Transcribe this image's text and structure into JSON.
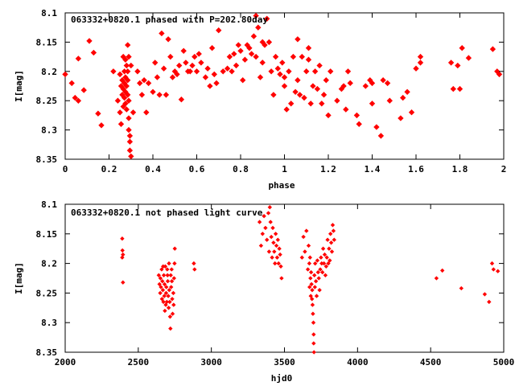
{
  "chart_data": [
    {
      "type": "scatter",
      "title": "063332+0820.1 phased with P=202.80day",
      "xlabel": "phase",
      "ylabel": "I[mag]",
      "xlim": [
        0,
        2
      ],
      "ylim": [
        8.35,
        8.1
      ],
      "y_inverted": true,
      "grid": false,
      "xticks": [
        "0",
        "0.2",
        "0.4",
        "0.6",
        "0.8",
        "1",
        "1.2",
        "1.4",
        "1.6",
        "1.8",
        "2"
      ],
      "yticks": [
        "8.1",
        "8.15",
        "8.2",
        "8.25",
        "8.3",
        "8.35"
      ],
      "color": "#ff0000",
      "points": [
        [
          0.0,
          8.205
        ],
        [
          0.03,
          8.22
        ],
        [
          0.045,
          8.245
        ],
        [
          0.06,
          8.25
        ],
        [
          0.06,
          8.178
        ],
        [
          0.085,
          8.232
        ],
        [
          0.11,
          8.148
        ],
        [
          0.13,
          8.168
        ],
        [
          0.15,
          8.272
        ],
        [
          0.165,
          8.292
        ],
        [
          0.22,
          8.2
        ],
        [
          0.24,
          8.25
        ],
        [
          0.25,
          8.205
        ],
        [
          0.25,
          8.27
        ],
        [
          0.255,
          8.225
        ],
        [
          0.255,
          8.29
        ],
        [
          0.26,
          8.215
        ],
        [
          0.26,
          8.24
        ],
        [
          0.265,
          8.175
        ],
        [
          0.265,
          8.23
        ],
        [
          0.265,
          8.26
        ],
        [
          0.27,
          8.2
        ],
        [
          0.27,
          8.22
        ],
        [
          0.27,
          8.245
        ],
        [
          0.275,
          8.18
        ],
        [
          0.275,
          8.21
        ],
        [
          0.275,
          8.235
        ],
        [
          0.275,
          8.255
        ],
        [
          0.28,
          8.19
        ],
        [
          0.28,
          8.225
        ],
        [
          0.28,
          8.265
        ],
        [
          0.285,
          8.2
        ],
        [
          0.285,
          8.215
        ],
        [
          0.285,
          8.24
        ],
        [
          0.285,
          8.155
        ],
        [
          0.29,
          8.175
        ],
        [
          0.29,
          8.25
        ],
        [
          0.29,
          8.28
        ],
        [
          0.29,
          8.3
        ],
        [
          0.295,
          8.31
        ],
        [
          0.295,
          8.32
        ],
        [
          0.295,
          8.335
        ],
        [
          0.3,
          8.345
        ],
        [
          0.3,
          8.19
        ],
        [
          0.31,
          8.27
        ],
        [
          0.33,
          8.2
        ],
        [
          0.34,
          8.22
        ],
        [
          0.35,
          8.24
        ],
        [
          0.36,
          8.215
        ],
        [
          0.37,
          8.27
        ],
        [
          0.38,
          8.22
        ],
        [
          0.4,
          8.235
        ],
        [
          0.41,
          8.185
        ],
        [
          0.42,
          8.21
        ],
        [
          0.43,
          8.24
        ],
        [
          0.44,
          8.135
        ],
        [
          0.45,
          8.195
        ],
        [
          0.46,
          8.24
        ],
        [
          0.47,
          8.145
        ],
        [
          0.48,
          8.175
        ],
        [
          0.49,
          8.21
        ],
        [
          0.5,
          8.2
        ],
        [
          0.51,
          8.205
        ],
        [
          0.52,
          8.19
        ],
        [
          0.53,
          8.248
        ],
        [
          0.54,
          8.165
        ],
        [
          0.55,
          8.185
        ],
        [
          0.56,
          8.2
        ],
        [
          0.57,
          8.2
        ],
        [
          0.58,
          8.19
        ],
        [
          0.59,
          8.175
        ],
        [
          0.6,
          8.2
        ],
        [
          0.61,
          8.17
        ],
        [
          0.62,
          8.185
        ],
        [
          0.64,
          8.21
        ],
        [
          0.65,
          8.195
        ],
        [
          0.66,
          8.225
        ],
        [
          0.67,
          8.16
        ],
        [
          0.68,
          8.205
        ],
        [
          0.69,
          8.22
        ],
        [
          0.7,
          8.13
        ],
        [
          0.72,
          8.2
        ],
        [
          0.74,
          8.195
        ],
        [
          0.75,
          8.175
        ],
        [
          0.76,
          8.2
        ],
        [
          0.77,
          8.17
        ],
        [
          0.78,
          8.19
        ],
        [
          0.79,
          8.155
        ],
        [
          0.8,
          8.165
        ],
        [
          0.81,
          8.215
        ],
        [
          0.82,
          8.18
        ],
        [
          0.83,
          8.155
        ],
        [
          0.84,
          8.16
        ],
        [
          0.85,
          8.17
        ],
        [
          0.86,
          8.14
        ],
        [
          0.87,
          8.175
        ],
        [
          0.87,
          8.105
        ],
        [
          0.88,
          8.125
        ],
        [
          0.89,
          8.21
        ],
        [
          0.9,
          8.15
        ],
        [
          0.9,
          8.185
        ],
        [
          0.91,
          8.155
        ],
        [
          0.92,
          8.11
        ],
        [
          0.93,
          8.15
        ],
        [
          0.94,
          8.2
        ],
        [
          0.95,
          8.24
        ],
        [
          0.96,
          8.175
        ],
        [
          0.97,
          8.195
        ],
        [
          0.98,
          8.205
        ],
        [
          0.99,
          8.185
        ],
        [
          1.0,
          8.21
        ],
        [
          1.0,
          8.225
        ],
        [
          1.01,
          8.265
        ],
        [
          1.02,
          8.2
        ],
        [
          1.03,
          8.255
        ],
        [
          1.04,
          8.175
        ],
        [
          1.05,
          8.235
        ],
        [
          1.06,
          8.145
        ],
        [
          1.06,
          8.215
        ],
        [
          1.07,
          8.24
        ],
        [
          1.08,
          8.175
        ],
        [
          1.09,
          8.245
        ],
        [
          1.1,
          8.2
        ],
        [
          1.11,
          8.18
        ],
        [
          1.11,
          8.16
        ],
        [
          1.12,
          8.255
        ],
        [
          1.13,
          8.225
        ],
        [
          1.14,
          8.2
        ],
        [
          1.15,
          8.23
        ],
        [
          1.16,
          8.19
        ],
        [
          1.17,
          8.255
        ],
        [
          1.18,
          8.24
        ],
        [
          1.19,
          8.215
        ],
        [
          1.2,
          8.275
        ],
        [
          1.21,
          8.2
        ],
        [
          1.24,
          8.25
        ],
        [
          1.26,
          8.23
        ],
        [
          1.27,
          8.225
        ],
        [
          1.28,
          8.265
        ],
        [
          1.29,
          8.2
        ],
        [
          1.3,
          8.22
        ],
        [
          1.33,
          8.275
        ],
        [
          1.34,
          8.29
        ],
        [
          1.37,
          8.225
        ],
        [
          1.39,
          8.215
        ],
        [
          1.4,
          8.22
        ],
        [
          1.4,
          8.255
        ],
        [
          1.42,
          8.295
        ],
        [
          1.44,
          8.31
        ],
        [
          1.45,
          8.215
        ],
        [
          1.47,
          8.22
        ],
        [
          1.48,
          8.25
        ],
        [
          1.53,
          8.28
        ],
        [
          1.54,
          8.245
        ],
        [
          1.56,
          8.235
        ],
        [
          1.58,
          8.27
        ],
        [
          1.6,
          8.195
        ],
        [
          1.62,
          8.175
        ],
        [
          1.62,
          8.185
        ],
        [
          1.76,
          8.185
        ],
        [
          1.77,
          8.23
        ],
        [
          1.79,
          8.19
        ],
        [
          1.8,
          8.23
        ],
        [
          1.81,
          8.16
        ],
        [
          1.84,
          8.177
        ],
        [
          1.95,
          8.162
        ],
        [
          1.97,
          8.2
        ],
        [
          1.98,
          8.205
        ]
      ]
    },
    {
      "type": "scatter",
      "title": "063332+0820.1 not phased light curve",
      "xlabel": "hjd0",
      "ylabel": "I[mag]",
      "xlim": [
        2000,
        5000
      ],
      "ylim": [
        8.35,
        8.1
      ],
      "y_inverted": true,
      "grid": false,
      "xticks": [
        "2000",
        "2500",
        "3000",
        "3500",
        "4000",
        "4500",
        "5000"
      ],
      "yticks": [
        "8.1",
        "8.15",
        "8.2",
        "8.25",
        "8.3",
        "8.35"
      ],
      "color": "#ff0000",
      "points": [
        [
          2390,
          8.158
        ],
        [
          2390,
          8.19
        ],
        [
          2392,
          8.178
        ],
        [
          2395,
          8.232
        ],
        [
          2395,
          8.185
        ],
        [
          2640,
          8.22
        ],
        [
          2645,
          8.235
        ],
        [
          2650,
          8.25
        ],
        [
          2652,
          8.225
        ],
        [
          2655,
          8.24
        ],
        [
          2660,
          8.21
        ],
        [
          2662,
          8.26
        ],
        [
          2665,
          8.23
        ],
        [
          2668,
          8.245
        ],
        [
          2670,
          8.205
        ],
        [
          2672,
          8.265
        ],
        [
          2675,
          8.22
        ],
        [
          2678,
          8.255
        ],
        [
          2680,
          8.235
        ],
        [
          2682,
          8.28
        ],
        [
          2685,
          8.205
        ],
        [
          2688,
          8.27
        ],
        [
          2690,
          8.25
        ],
        [
          2692,
          8.24
        ],
        [
          2695,
          8.265
        ],
        [
          2698,
          8.21
        ],
        [
          2700,
          8.22
        ],
        [
          2702,
          8.23
        ],
        [
          2705,
          8.255
        ],
        [
          2708,
          8.275
        ],
        [
          2710,
          8.2
        ],
        [
          2712,
          8.245
        ],
        [
          2715,
          8.265
        ],
        [
          2718,
          8.29
        ],
        [
          2720,
          8.31
        ],
        [
          2722,
          8.22
        ],
        [
          2725,
          8.24
        ],
        [
          2728,
          8.21
        ],
        [
          2730,
          8.23
        ],
        [
          2732,
          8.26
        ],
        [
          2735,
          8.285
        ],
        [
          2740,
          8.25
        ],
        [
          2742,
          8.27
        ],
        [
          2745,
          8.225
        ],
        [
          2748,
          8.2
        ],
        [
          2750,
          8.175
        ],
        [
          2880,
          8.2
        ],
        [
          2885,
          8.21
        ],
        [
          3330,
          8.13
        ],
        [
          3340,
          8.17
        ],
        [
          3350,
          8.15
        ],
        [
          3360,
          8.12
        ],
        [
          3370,
          8.14
        ],
        [
          3380,
          8.16
        ],
        [
          3390,
          8.115
        ],
        [
          3395,
          8.18
        ],
        [
          3400,
          8.105
        ],
        [
          3405,
          8.13
        ],
        [
          3410,
          8.155
        ],
        [
          3415,
          8.19
        ],
        [
          3420,
          8.14
        ],
        [
          3425,
          8.165
        ],
        [
          3430,
          8.18
        ],
        [
          3435,
          8.2
        ],
        [
          3440,
          8.15
        ],
        [
          3445,
          8.17
        ],
        [
          3450,
          8.19
        ],
        [
          3455,
          8.16
        ],
        [
          3460,
          8.2
        ],
        [
          3465,
          8.175
        ],
        [
          3470,
          8.185
        ],
        [
          3475,
          8.205
        ],
        [
          3480,
          8.225
        ],
        [
          3620,
          8.19
        ],
        [
          3630,
          8.155
        ],
        [
          3640,
          8.18
        ],
        [
          3650,
          8.145
        ],
        [
          3660,
          8.21
        ],
        [
          3665,
          8.17
        ],
        [
          3670,
          8.2
        ],
        [
          3672,
          8.24
        ],
        [
          3675,
          8.19
        ],
        [
          3678,
          8.225
        ],
        [
          3680,
          8.255
        ],
        [
          3682,
          8.215
        ],
        [
          3685,
          8.235
        ],
        [
          3688,
          8.26
        ],
        [
          3690,
          8.245
        ],
        [
          3692,
          8.27
        ],
        [
          3695,
          8.285
        ],
        [
          3698,
          8.3
        ],
        [
          3700,
          8.32
        ],
        [
          3700,
          8.335
        ],
        [
          3702,
          8.35
        ],
        [
          3705,
          8.22
        ],
        [
          3708,
          8.24
        ],
        [
          3710,
          8.2
        ],
        [
          3715,
          8.23
        ],
        [
          3720,
          8.255
        ],
        [
          3725,
          8.195
        ],
        [
          3730,
          8.215
        ],
        [
          3735,
          8.225
        ],
        [
          3740,
          8.245
        ],
        [
          3745,
          8.21
        ],
        [
          3750,
          8.19
        ],
        [
          3755,
          8.2
        ],
        [
          3760,
          8.215
        ],
        [
          3765,
          8.175
        ],
        [
          3770,
          8.2
        ],
        [
          3775,
          8.185
        ],
        [
          3780,
          8.22
        ],
        [
          3785,
          8.205
        ],
        [
          3790,
          8.19
        ],
        [
          3795,
          8.16
        ],
        [
          3800,
          8.2
        ],
        [
          3805,
          8.175
        ],
        [
          3810,
          8.195
        ],
        [
          3815,
          8.15
        ],
        [
          3820,
          8.165
        ],
        [
          3825,
          8.18
        ],
        [
          3830,
          8.135
        ],
        [
          3835,
          8.145
        ],
        [
          3840,
          8.16
        ],
        [
          4540,
          8.225
        ],
        [
          4580,
          8.212
        ],
        [
          4710,
          8.242
        ],
        [
          4870,
          8.252
        ],
        [
          4900,
          8.265
        ],
        [
          4920,
          8.2
        ],
        [
          4930,
          8.21
        ],
        [
          4960,
          8.213
        ]
      ]
    }
  ]
}
